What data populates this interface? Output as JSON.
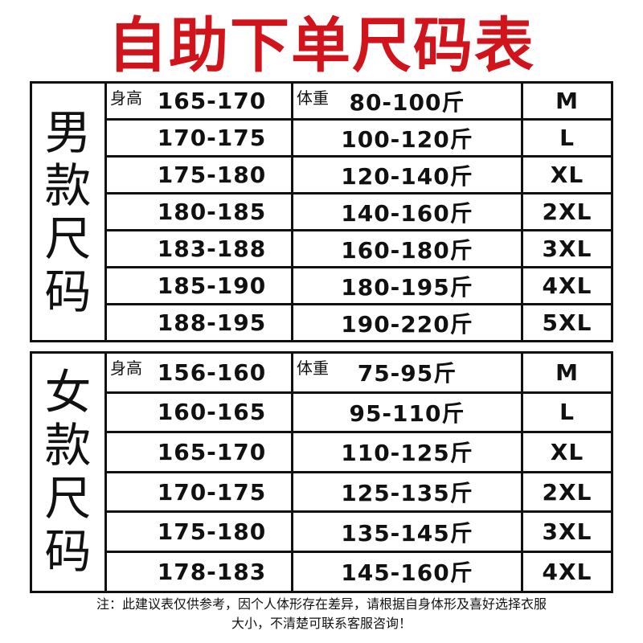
{
  "title": "自助下单尺码表",
  "labels": {
    "height": "身高",
    "weight": "体重"
  },
  "men": {
    "heading": [
      "男",
      "款",
      "尺",
      "码"
    ],
    "rows": [
      {
        "height": "165-170",
        "weight": "80-100斤",
        "size": "M"
      },
      {
        "height": "170-175",
        "weight": "100-120斤",
        "size": "L"
      },
      {
        "height": "175-180",
        "weight": "120-140斤",
        "size": "XL"
      },
      {
        "height": "180-185",
        "weight": "140-160斤",
        "size": "2XL"
      },
      {
        "height": "183-188",
        "weight": "160-180斤",
        "size": "3XL"
      },
      {
        "height": "185-190",
        "weight": "180-195斤",
        "size": "4XL"
      },
      {
        "height": "188-195",
        "weight": "190-220斤",
        "size": "5XL"
      }
    ]
  },
  "women": {
    "heading": [
      "女",
      "款",
      "尺",
      "码"
    ],
    "rows": [
      {
        "height": "156-160",
        "weight": "75-95斤",
        "size": "M"
      },
      {
        "height": "160-165",
        "weight": "95-110斤",
        "size": "L"
      },
      {
        "height": "165-170",
        "weight": "110-125斤",
        "size": "XL"
      },
      {
        "height": "170-175",
        "weight": "125-135斤",
        "size": "2XL"
      },
      {
        "height": "175-180",
        "weight": "135-145斤",
        "size": "3XL"
      },
      {
        "height": "178-183",
        "weight": "145-160斤",
        "size": "4XL"
      }
    ]
  },
  "note": [
    "注：此建议表仅供参考，因个人体形存在差异，请根据自身体形及喜好选择衣服",
    "大小，不清楚可联系客服咨询！"
  ],
  "colors": {
    "title": "#d1141b",
    "border": "#111111"
  }
}
